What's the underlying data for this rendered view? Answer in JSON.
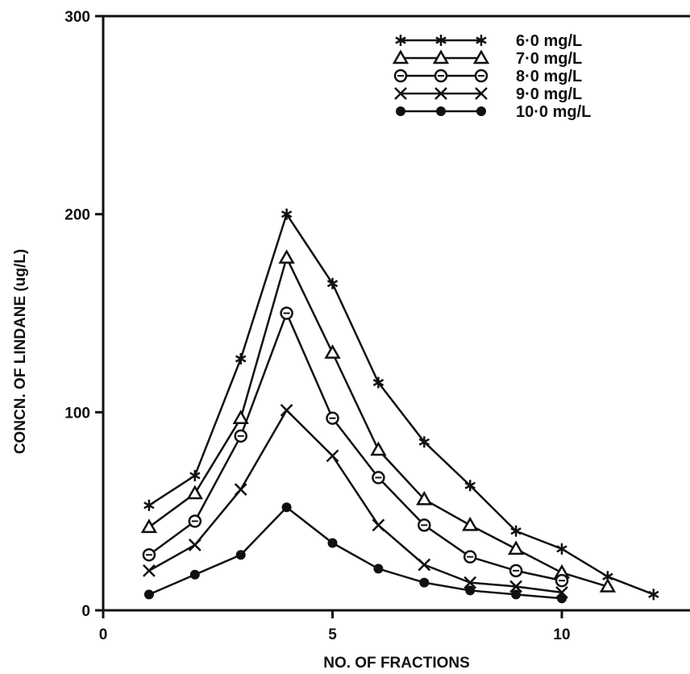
{
  "chart_data": {
    "type": "line",
    "xlabel": "NO. OF FRACTIONS",
    "ylabel": "CONCN. OF LINDANE (ug/L)",
    "xlim": [
      0,
      12.5
    ],
    "ylim": [
      0,
      300
    ],
    "x_ticks": [
      0,
      5,
      10
    ],
    "y_ticks": [
      0,
      100,
      200,
      300
    ],
    "grid": false,
    "legend_position": "top-right",
    "series": [
      {
        "name": "6·0 mg/L",
        "marker": "asterisk",
        "x": [
          1,
          2,
          3,
          4,
          5,
          6,
          7,
          8,
          9,
          10,
          11,
          12
        ],
        "y": [
          53,
          68,
          127,
          200,
          165,
          115,
          85,
          63,
          40,
          31,
          17,
          8
        ]
      },
      {
        "name": "7·0 mg/L",
        "marker": "triangle",
        "x": [
          1,
          2,
          3,
          4,
          5,
          6,
          7,
          8,
          9,
          10,
          11
        ],
        "y": [
          42,
          59,
          97,
          178,
          130,
          81,
          56,
          43,
          31,
          19,
          12
        ]
      },
      {
        "name": "8·0 mg/L",
        "marker": "circle-open",
        "x": [
          1,
          2,
          3,
          4,
          5,
          6,
          7,
          8,
          9,
          10
        ],
        "y": [
          28,
          45,
          88,
          150,
          97,
          67,
          43,
          27,
          20,
          15
        ]
      },
      {
        "name": "9·0 mg/L",
        "marker": "x",
        "x": [
          1,
          2,
          3,
          4,
          5,
          6,
          7,
          8,
          9,
          10
        ],
        "y": [
          20,
          33,
          61,
          101,
          78,
          43,
          23,
          14,
          12,
          9
        ]
      },
      {
        "name": "10·0 mg/L",
        "marker": "circle-filled",
        "x": [
          1,
          2,
          3,
          4,
          5,
          6,
          7,
          8,
          9,
          10
        ],
        "y": [
          8,
          18,
          28,
          52,
          34,
          21,
          14,
          10,
          8,
          6
        ]
      }
    ]
  }
}
